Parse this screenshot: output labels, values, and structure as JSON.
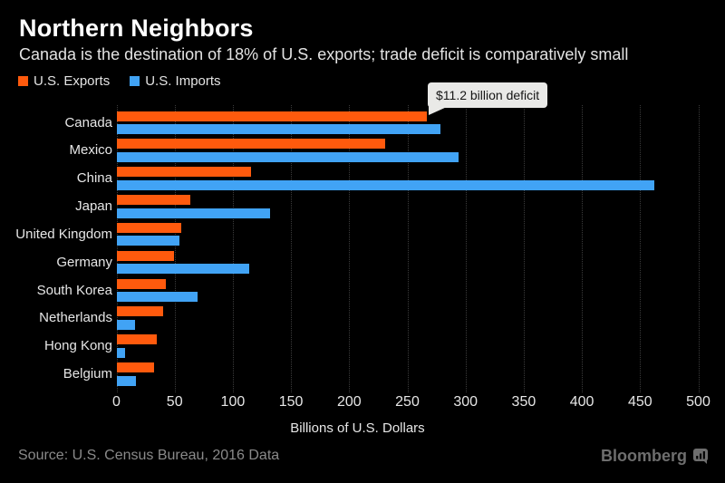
{
  "header": {
    "title": "Northern Neighbors",
    "subtitle": "Canada is the destination of 18% of U.S. exports; trade deficit is comparatively small"
  },
  "legend": [
    {
      "label": "U.S. Exports",
      "color": "#ff5a0d"
    },
    {
      "label": "U.S. Imports",
      "color": "#41a3f5"
    }
  ],
  "tooltip": {
    "text": "$11.2 billion deficit",
    "target": "Canada exports bar end"
  },
  "chart_data": {
    "type": "bar",
    "orientation": "horizontal",
    "title": "Northern Neighbors",
    "subtitle": "Canada is the destination of 18% of U.S. exports; trade deficit is comparatively small",
    "categories": [
      "Canada",
      "Mexico",
      "China",
      "Japan",
      "United Kingdom",
      "Germany",
      "South Korea",
      "Netherlands",
      "Hong Kong",
      "Belgium"
    ],
    "series": [
      {
        "name": "U.S. Exports",
        "color": "#ff5a0d",
        "values": [
          266.8,
          231.0,
          115.8,
          63.3,
          55.4,
          49.4,
          42.3,
          40.4,
          34.9,
          32.7
        ]
      },
      {
        "name": "U.S. Imports",
        "color": "#41a3f5",
        "values": [
          278.1,
          294.1,
          462.6,
          132.2,
          54.3,
          114.2,
          69.9,
          16.2,
          7.4,
          16.9
        ]
      }
    ],
    "xlabel": "Billions of U.S. Dollars",
    "xlim": [
      0,
      500
    ],
    "xticks": [
      0,
      50,
      100,
      150,
      200,
      250,
      300,
      350,
      400,
      450,
      500
    ],
    "grid": "dotted-vertical",
    "legend_position": "top-left",
    "annotation": {
      "text": "$11.2 billion deficit",
      "category": "Canada",
      "series": "U.S. Exports"
    }
  },
  "colors": {
    "background": "#000000",
    "exports": "#ff5a0d",
    "imports": "#41a3f5",
    "gridline": "#3b3b3b",
    "tooltip_bg": "#e9e9e7"
  },
  "footer": {
    "source": "Source: U.S. Census Bureau, 2016 Data",
    "brand": "Bloomberg"
  }
}
